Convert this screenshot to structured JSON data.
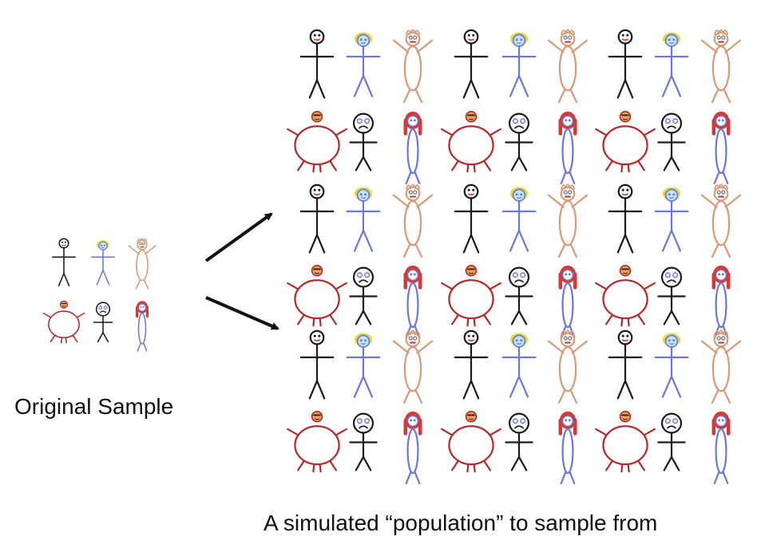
{
  "labels": {
    "original_sample": "Original Sample",
    "simulated_population": "A simulated “population” to sample from"
  },
  "figure_types": [
    "black-stick",
    "blue-girl",
    "tan-man",
    "red-round",
    "sad-stick",
    "blue-redhair"
  ],
  "colors": {
    "black": "#1a1a1a",
    "blue": "#6b78d8",
    "tan": "#d59a78",
    "red": "#b22a2a",
    "yellow_hair": "#e9d63a",
    "red_hair": "#d43a3a",
    "face_orange": "#f0a050",
    "arrow": "#111111"
  },
  "population": {
    "rows": 6,
    "cols": 9,
    "row_patterns": [
      [
        "black-stick",
        "blue-girl",
        "tan-man",
        "black-stick",
        "blue-girl",
        "tan-man",
        "black-stick",
        "blue-girl",
        "tan-man"
      ],
      [
        "red-round",
        "sad-stick",
        "blue-redhair",
        "red-round",
        "sad-stick",
        "blue-redhair",
        "red-round",
        "sad-stick",
        "blue-redhair"
      ],
      [
        "black-stick",
        "blue-girl",
        "tan-man",
        "black-stick",
        "blue-girl",
        "tan-man",
        "black-stick",
        "blue-girl",
        "tan-man"
      ],
      [
        "red-round",
        "sad-stick",
        "blue-redhair",
        "red-round",
        "sad-stick",
        "blue-redhair",
        "red-round",
        "sad-stick",
        "blue-redhair"
      ],
      [
        "black-stick",
        "blue-girl",
        "tan-man",
        "black-stick",
        "blue-girl",
        "tan-man",
        "black-stick",
        "blue-girl",
        "tan-man"
      ],
      [
        "red-round",
        "sad-stick",
        "blue-redhair",
        "red-round",
        "sad-stick",
        "blue-redhair",
        "red-round",
        "sad-stick",
        "blue-redhair"
      ]
    ]
  },
  "sample": {
    "rows": [
      [
        "black-stick",
        "blue-girl",
        "tan-man"
      ],
      [
        "red-round",
        "sad-stick",
        "blue-redhair"
      ]
    ]
  }
}
